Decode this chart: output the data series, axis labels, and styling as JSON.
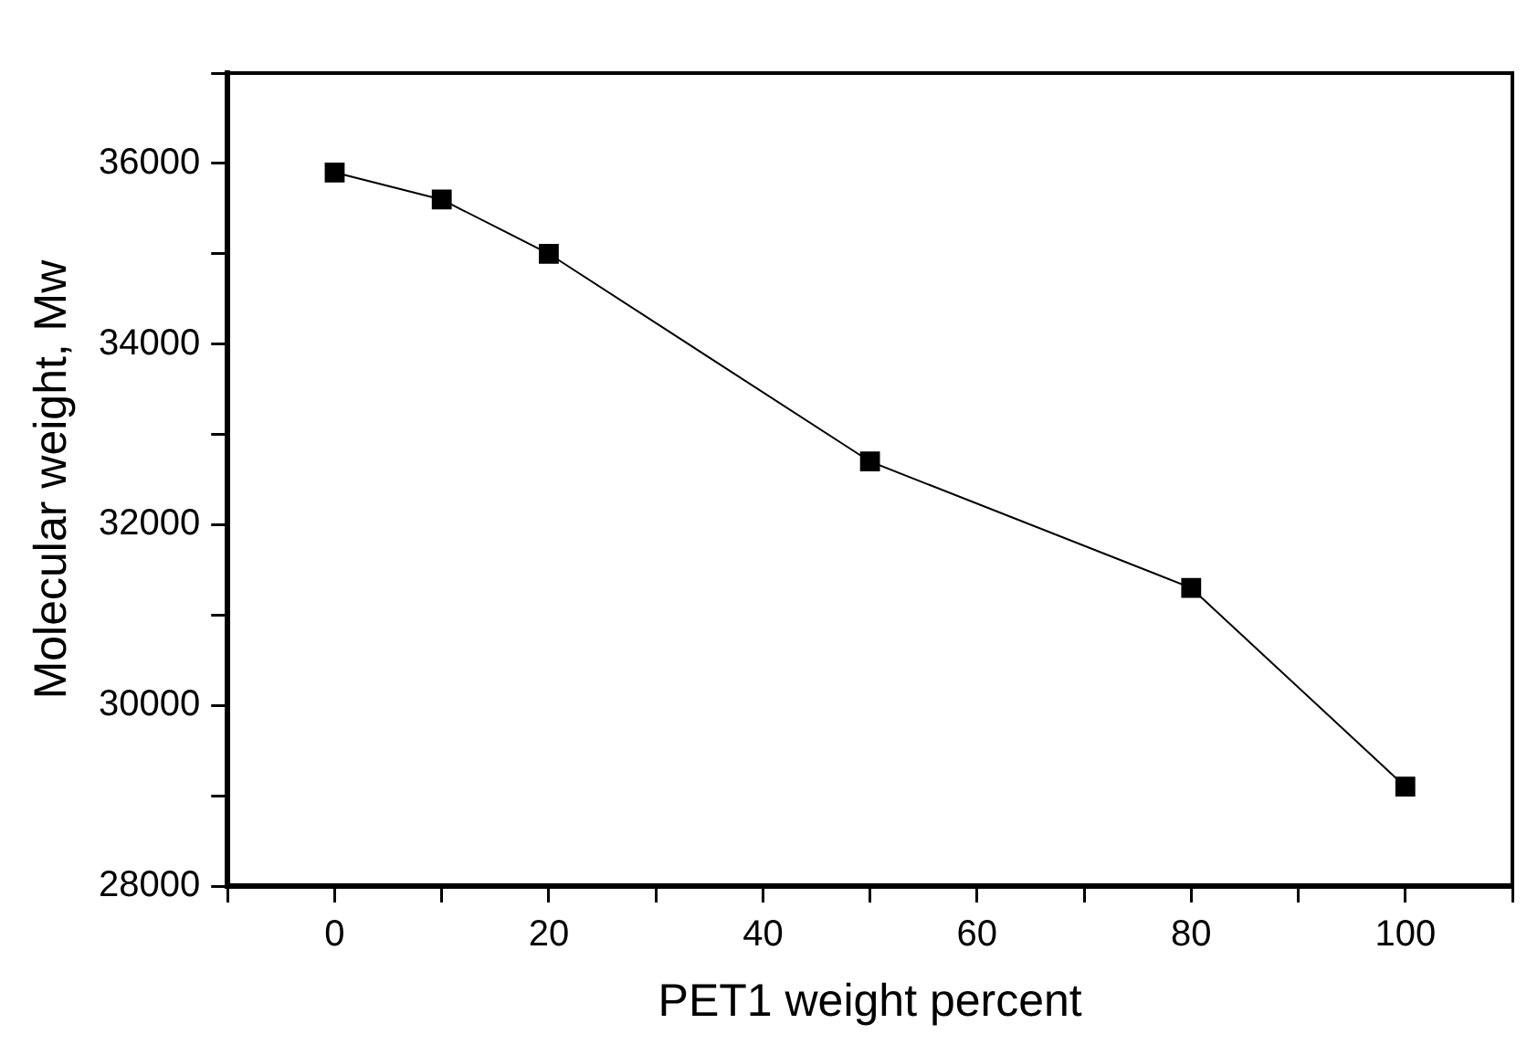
{
  "chart_data": {
    "type": "line",
    "xlabel": "PET1 weight percent",
    "ylabel": "Molecular weight, Mw",
    "x": [
      0,
      10,
      20,
      50,
      80,
      100
    ],
    "series": [
      {
        "color": "#000000",
        "values": [
          35900,
          35600,
          35000,
          32700,
          31300,
          29100
        ]
      }
    ],
    "xlim": [
      -10,
      110
    ],
    "xticks": [
      {
        "value": -10,
        "label": null
      },
      0,
      {
        "value": 10,
        "label": null
      },
      20,
      {
        "value": 30,
        "label": null
      },
      40,
      {
        "value": 50,
        "label": null
      },
      60,
      {
        "value": 70,
        "label": null
      },
      80,
      {
        "value": 90,
        "label": null
      },
      100,
      {
        "value": 110,
        "label": null
      }
    ],
    "ylim": [
      28000,
      37000
    ],
    "yticks": [
      28000,
      {
        "value": 29000,
        "label": null
      },
      30000,
      {
        "value": 31000,
        "label": null
      },
      32000,
      {
        "value": 33000,
        "label": null
      },
      34000,
      {
        "value": 35000,
        "label": null
      },
      36000,
      {
        "value": 37000,
        "label": null
      }
    ],
    "grid": false,
    "legend": false,
    "marker": "square",
    "line_style": "solid"
  }
}
